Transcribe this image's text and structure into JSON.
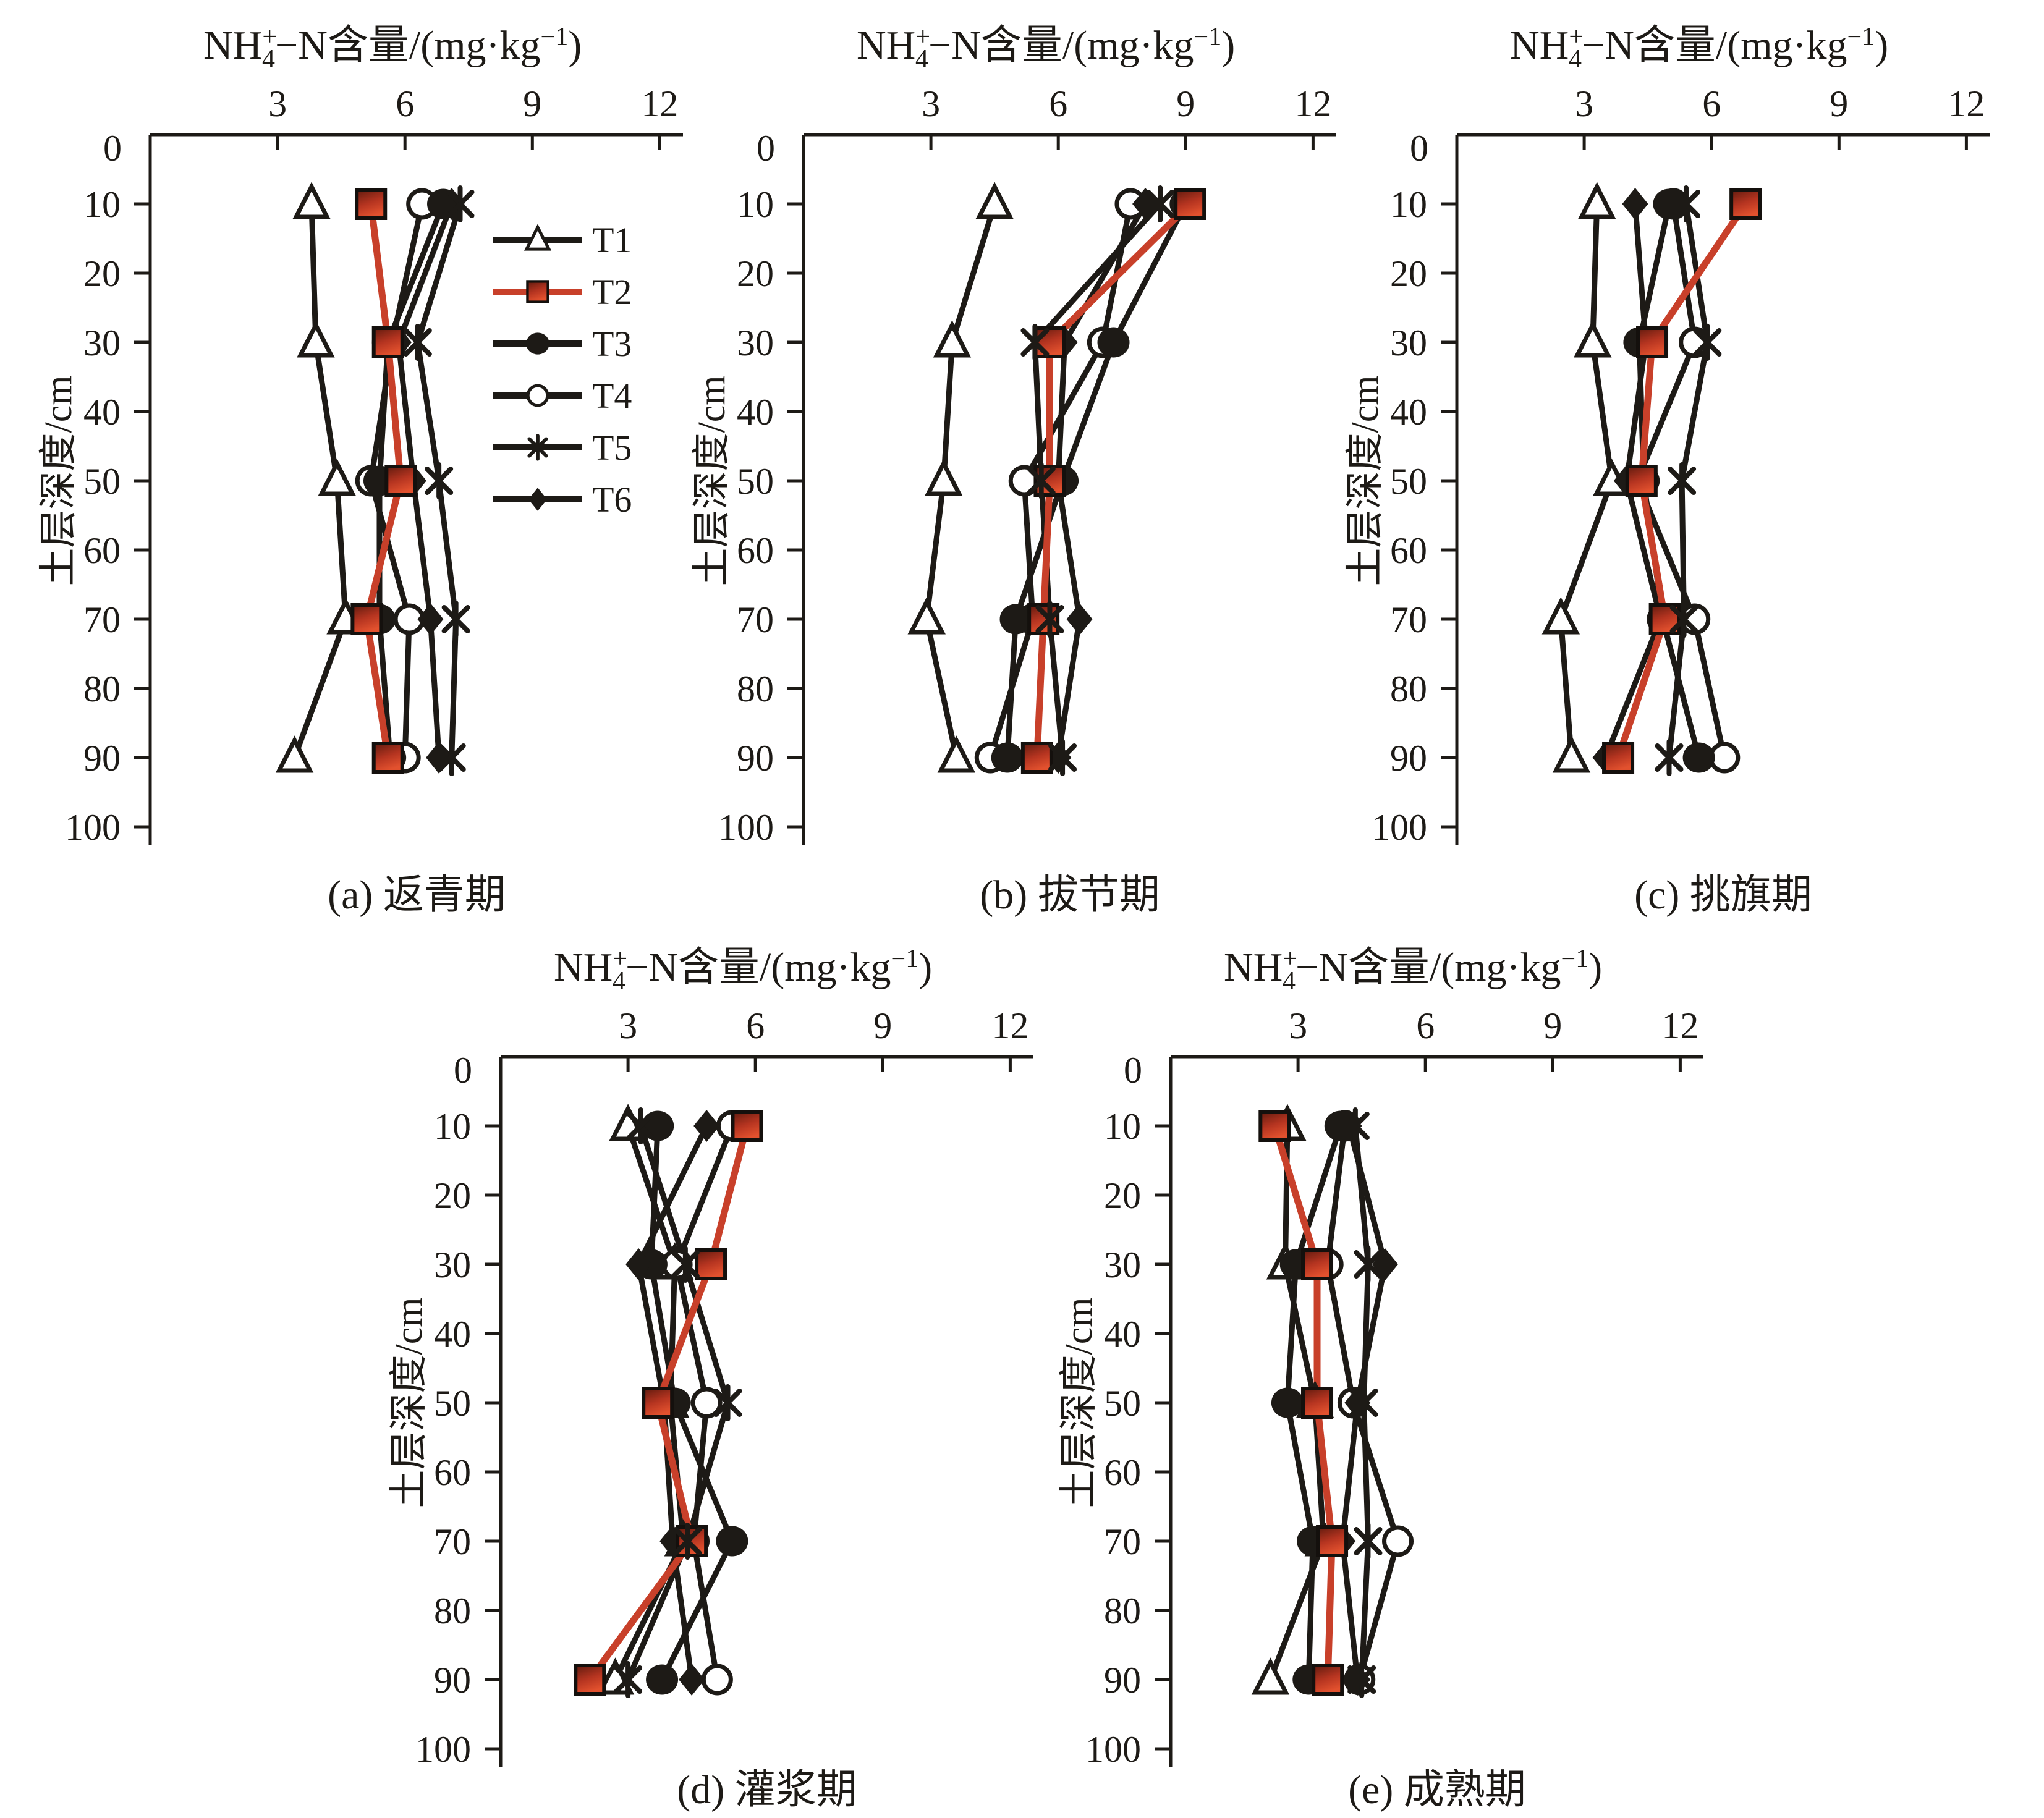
{
  "figure": {
    "background": "#ffffff",
    "axis_color": "#1d1a16",
    "red_line_color": "#c8402a",
    "red_fill_dark": "#5f1a0e",
    "red_fill_light": "#e2512e",
    "legend_text_color": "#6e6a66",
    "x_axis_title_plain": "NH4+−N含量/(mg·kg−1)",
    "x_axis_title": {
      "pre": "NH",
      "sup": "+",
      "sub": "4",
      "mid": "−N含量/(mg·kg",
      "exp": "−1",
      "post": ")"
    },
    "y_axis_title": "土层深度/cm",
    "origin_label": "0",
    "x_ticks": [
      "3",
      "6",
      "9",
      "12"
    ],
    "y_ticks": [
      "10",
      "20",
      "30",
      "40",
      "50",
      "60",
      "70",
      "80",
      "90",
      "100"
    ],
    "legend": {
      "position": "inside-top-right-of-panel-a",
      "items": [
        {
          "label": "T1",
          "marker": "triangle-open",
          "line_color": "#1d1a16"
        },
        {
          "label": "T2",
          "marker": "square-red",
          "line_color": "#c8402a"
        },
        {
          "label": "T3",
          "marker": "circle-filled",
          "line_color": "#1d1a16"
        },
        {
          "label": "T4",
          "marker": "circle-open",
          "line_color": "#1d1a16"
        },
        {
          "label": "T5",
          "marker": "asterisk",
          "line_color": "#1d1a16"
        },
        {
          "label": "T6",
          "marker": "diamond-filled",
          "line_color": "#1d1a16"
        }
      ]
    }
  },
  "chart_data": [
    {
      "type": "line",
      "panel": "a",
      "caption": "(a) 返青期",
      "stage": "返青期",
      "xlabel": "NH4+−N含量/(mg·kg−1)",
      "ylabel": "土层深度/cm",
      "x_range": [
        0,
        12.6
      ],
      "x_ticks": [
        3,
        6,
        9,
        12
      ],
      "y_range": [
        0,
        100
      ],
      "depths": [
        10,
        30,
        50,
        70,
        90
      ],
      "series": [
        {
          "name": "T1",
          "marker": "triangle-open",
          "line_color": "#1d1a16",
          "values": [
            3.8,
            3.9,
            4.4,
            4.6,
            3.4
          ]
        },
        {
          "name": "T2",
          "marker": "square-red",
          "line_color": "#c8402a",
          "values": [
            5.2,
            5.6,
            5.9,
            5.1,
            5.6
          ]
        },
        {
          "name": "T3",
          "marker": "circle-filled",
          "line_color": "#1d1a16",
          "values": [
            6.9,
            5.6,
            5.4,
            5.4,
            5.65
          ]
        },
        {
          "name": "T4",
          "marker": "circle-open",
          "line_color": "#1d1a16",
          "values": [
            6.4,
            5.7,
            5.2,
            6.1,
            6.0
          ]
        },
        {
          "name": "T5",
          "marker": "asterisk",
          "line_color": "#1d1a16",
          "values": [
            7.3,
            6.3,
            6.8,
            7.2,
            7.1
          ]
        },
        {
          "name": "T6",
          "marker": "diamond-filled",
          "line_color": "#1d1a16",
          "values": [
            7.1,
            5.85,
            6.2,
            6.6,
            6.8
          ]
        }
      ]
    },
    {
      "type": "line",
      "panel": "b",
      "caption": "(b) 拔节期",
      "stage": "拔节期",
      "xlabel": "NH4+−N含量/(mg·kg−1)",
      "ylabel": "土层深度/cm",
      "x_range": [
        0,
        12.6
      ],
      "x_ticks": [
        3,
        6,
        9,
        12
      ],
      "y_range": [
        0,
        100
      ],
      "depths": [
        10,
        30,
        50,
        70,
        90
      ],
      "series": [
        {
          "name": "T1",
          "marker": "triangle-open",
          "line_color": "#1d1a16",
          "values": [
            4.5,
            3.5,
            3.3,
            2.9,
            3.6
          ]
        },
        {
          "name": "T2",
          "marker": "square-red",
          "line_color": "#c8402a",
          "values": [
            9.1,
            5.8,
            5.8,
            5.65,
            5.5
          ]
        },
        {
          "name": "T3",
          "marker": "circle-filled",
          "line_color": "#1d1a16",
          "values": [
            9.0,
            7.3,
            6.1,
            5.0,
            4.8
          ]
        },
        {
          "name": "T4",
          "marker": "circle-open",
          "line_color": "#1d1a16",
          "values": [
            7.7,
            7.05,
            5.2,
            5.4,
            4.4
          ]
        },
        {
          "name": "T5",
          "marker": "asterisk",
          "line_color": "#1d1a16",
          "values": [
            8.4,
            5.45,
            5.6,
            5.8,
            6.1
          ]
        },
        {
          "name": "T6",
          "marker": "diamond-filled",
          "line_color": "#1d1a16",
          "values": [
            8.05,
            6.15,
            6.0,
            6.5,
            6.0
          ]
        }
      ]
    },
    {
      "type": "line",
      "panel": "c",
      "caption": "(c) 挑旗期",
      "stage": "挑旗期",
      "xlabel": "NH4+−N含量/(mg·kg−1)",
      "ylabel": "土层深度/cm",
      "x_range": [
        0,
        12.6
      ],
      "x_ticks": [
        3,
        6,
        9,
        12
      ],
      "y_range": [
        0,
        100
      ],
      "depths": [
        10,
        30,
        50,
        70,
        90
      ],
      "series": [
        {
          "name": "T1",
          "marker": "triangle-open",
          "line_color": "#1d1a16",
          "values": [
            3.3,
            3.2,
            3.65,
            2.45,
            2.7
          ]
        },
        {
          "name": "T2",
          "marker": "square-red",
          "line_color": "#c8402a",
          "values": [
            6.8,
            4.6,
            4.35,
            4.9,
            3.8
          ]
        },
        {
          "name": "T3",
          "marker": "circle-filled",
          "line_color": "#1d1a16",
          "values": [
            5.0,
            4.3,
            4.4,
            4.85,
            5.7
          ]
        },
        {
          "name": "T4",
          "marker": "circle-open",
          "line_color": "#1d1a16",
          "values": [
            5.1,
            5.6,
            4.25,
            5.6,
            6.3
          ]
        },
        {
          "name": "T5",
          "marker": "asterisk",
          "line_color": "#1d1a16",
          "values": [
            5.4,
            5.9,
            5.3,
            5.35,
            5.0
          ]
        },
        {
          "name": "T6",
          "marker": "diamond-filled",
          "line_color": "#1d1a16",
          "values": [
            4.2,
            4.45,
            4.0,
            4.8,
            3.5
          ]
        }
      ]
    },
    {
      "type": "line",
      "panel": "d",
      "caption": "(d) 灌浆期",
      "stage": "灌浆期",
      "xlabel": "NH4+−N含量/(mg·kg−1)",
      "ylabel": "土层深度/cm",
      "x_range": [
        0,
        12.6
      ],
      "x_ticks": [
        3,
        6,
        9,
        12
      ],
      "y_range": [
        0,
        100
      ],
      "depths": [
        10,
        30,
        50,
        70,
        90
      ],
      "series": [
        {
          "name": "T1",
          "marker": "triangle-open",
          "line_color": "#1d1a16",
          "values": [
            3.0,
            4.1,
            4.0,
            4.3,
            2.7
          ]
        },
        {
          "name": "T2",
          "marker": "square-red",
          "line_color": "#c8402a",
          "values": [
            5.8,
            4.95,
            3.7,
            4.5,
            2.1
          ]
        },
        {
          "name": "T3",
          "marker": "circle-filled",
          "line_color": "#1d1a16",
          "values": [
            3.7,
            3.55,
            4.1,
            5.45,
            3.8
          ]
        },
        {
          "name": "T4",
          "marker": "circle-open",
          "line_color": "#1d1a16",
          "values": [
            5.45,
            4.15,
            4.85,
            4.55,
            5.1
          ]
        },
        {
          "name": "T5",
          "marker": "asterisk",
          "line_color": "#1d1a16",
          "values": [
            3.3,
            4.35,
            5.35,
            4.4,
            3.0
          ]
        },
        {
          "name": "T6",
          "marker": "diamond-filled",
          "line_color": "#1d1a16",
          "values": [
            4.85,
            3.25,
            3.85,
            4.05,
            4.5
          ]
        }
      ]
    },
    {
      "type": "line",
      "panel": "e",
      "caption": "(e) 成熟期",
      "stage": "成熟期",
      "xlabel": "NH4+−N含量/(mg·kg−1)",
      "ylabel": "土层深度/cm",
      "x_range": [
        0,
        12.6
      ],
      "x_ticks": [
        3,
        6,
        9,
        12
      ],
      "y_range": [
        0,
        100
      ],
      "depths": [
        10,
        30,
        50,
        70,
        90
      ],
      "series": [
        {
          "name": "T1",
          "marker": "triangle-open",
          "line_color": "#1d1a16",
          "values": [
            2.75,
            2.7,
            3.4,
            3.6,
            2.35
          ]
        },
        {
          "name": "T2",
          "marker": "square-red",
          "line_color": "#c8402a",
          "values": [
            2.45,
            3.45,
            3.45,
            3.8,
            3.7
          ]
        },
        {
          "name": "T3",
          "marker": "circle-filled",
          "line_color": "#1d1a16",
          "values": [
            4.0,
            2.95,
            2.75,
            3.35,
            3.25
          ]
        },
        {
          "name": "T4",
          "marker": "circle-open",
          "line_color": "#1d1a16",
          "values": [
            4.1,
            3.7,
            4.3,
            5.35,
            4.45
          ]
        },
        {
          "name": "T5",
          "marker": "asterisk",
          "line_color": "#1d1a16",
          "values": [
            4.35,
            4.65,
            4.55,
            4.65,
            4.5
          ]
        },
        {
          "name": "T6",
          "marker": "diamond-filled",
          "line_color": "#1d1a16",
          "values": [
            4.2,
            5.05,
            4.4,
            4.05,
            4.4
          ]
        }
      ]
    }
  ]
}
